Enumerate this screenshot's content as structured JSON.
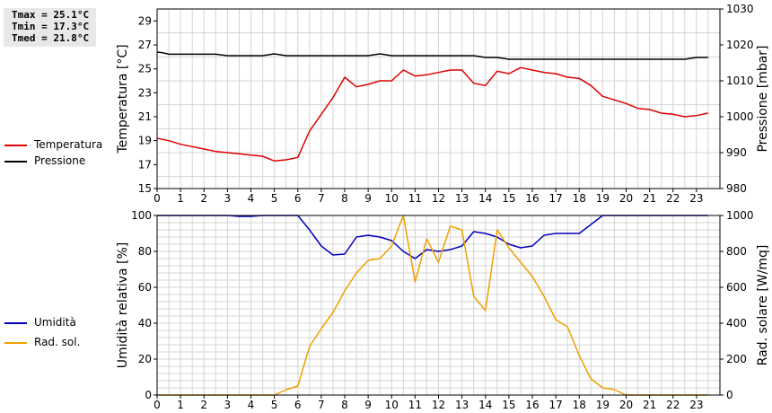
{
  "stats": {
    "tmax": "Tmax = 25.1°C",
    "tmin": "Tmin = 17.3°C",
    "tmed": "Tmed = 21.8°C"
  },
  "legend_top": [
    {
      "label": "Temperatura",
      "color": "#dd0000"
    },
    {
      "label": "Pressione",
      "color": "#000000"
    }
  ],
  "legend_bottom": [
    {
      "label": "Umidità",
      "color": "#0000bb"
    },
    {
      "label": "Rad. sol.",
      "color": "#f0a000"
    }
  ],
  "chart_data": [
    {
      "type": "line",
      "xlim": [
        0,
        24
      ],
      "x_ticks": [
        0,
        1,
        2,
        3,
        4,
        5,
        6,
        7,
        8,
        9,
        10,
        11,
        12,
        13,
        14,
        15,
        16,
        17,
        18,
        19,
        20,
        21,
        22,
        23
      ],
      "grid": true,
      "left_axis": {
        "label": "Temperatura [°C]",
        "ylim": [
          15,
          30
        ],
        "ticks": [
          15,
          17,
          19,
          21,
          23,
          25,
          27,
          29
        ]
      },
      "right_axis": {
        "label": "Pressione [mbar]",
        "ylim": [
          980,
          1030
        ],
        "ticks": [
          980,
          990,
          1000,
          1010,
          1020,
          1030
        ]
      },
      "series": [
        {
          "name": "Temperatura",
          "axis": "left",
          "color": "#dd0000",
          "x": [
            0,
            0.5,
            1,
            1.5,
            2,
            2.5,
            3,
            3.5,
            4,
            4.5,
            5,
            5.5,
            6,
            6.5,
            7,
            7.5,
            8,
            8.5,
            9,
            9.5,
            10,
            10.5,
            11,
            11.5,
            12,
            12.5,
            13,
            13.5,
            14,
            14.5,
            15,
            15.5,
            16,
            16.5,
            17,
            17.5,
            18,
            18.5,
            19,
            19.5,
            20,
            20.5,
            21,
            21.5,
            22,
            22.5,
            23,
            23.5
          ],
          "y": [
            19.2,
            19.0,
            18.7,
            18.5,
            18.3,
            18.1,
            18.0,
            17.9,
            17.8,
            17.7,
            17.3,
            17.4,
            17.6,
            19.8,
            21.2,
            22.6,
            24.3,
            23.5,
            23.7,
            24.0,
            24.0,
            24.9,
            24.4,
            24.5,
            24.7,
            24.9,
            24.9,
            23.8,
            23.6,
            24.8,
            24.6,
            25.1,
            24.9,
            24.7,
            24.6,
            24.3,
            24.2,
            23.6,
            22.7,
            22.4,
            22.1,
            21.7,
            21.6,
            21.3,
            21.2,
            21.0,
            21.1,
            21.3
          ]
        },
        {
          "name": "Pressione",
          "axis": "right",
          "color": "#000000",
          "x": [
            0,
            0.25,
            0.5,
            1,
            1.5,
            2,
            2.5,
            3,
            3.5,
            4,
            4.5,
            5,
            5.5,
            6,
            6.5,
            7,
            7.5,
            8,
            8.5,
            9,
            9.5,
            10,
            10.5,
            11,
            11.5,
            12,
            12.5,
            13,
            13.5,
            14,
            14.5,
            15,
            15.5,
            16,
            16.5,
            17,
            17.5,
            18,
            18.5,
            19,
            19.5,
            20,
            20.5,
            21,
            21.5,
            22,
            22.5,
            23,
            23.5
          ],
          "y": [
            1018,
            1017.8,
            1017.4,
            1017.4,
            1017.4,
            1017.4,
            1017.4,
            1017.0,
            1017.0,
            1017.0,
            1017.0,
            1017.5,
            1017.0,
            1017.0,
            1017.0,
            1017.0,
            1017.0,
            1017.0,
            1017.0,
            1017.0,
            1017.5,
            1017.0,
            1017.0,
            1017.0,
            1017.0,
            1017.0,
            1017.0,
            1017.0,
            1017.0,
            1016.5,
            1016.5,
            1016.0,
            1016.0,
            1016.0,
            1016.0,
            1016.0,
            1016.0,
            1016.0,
            1016.0,
            1016.0,
            1016.0,
            1016.0,
            1016.0,
            1016.0,
            1016.0,
            1016.0,
            1016.0,
            1016.5,
            1016.5
          ]
        }
      ]
    },
    {
      "type": "line",
      "xlim": [
        0,
        24
      ],
      "x_ticks": [
        0,
        1,
        2,
        3,
        4,
        5,
        6,
        7,
        8,
        9,
        10,
        11,
        12,
        13,
        14,
        15,
        16,
        17,
        18,
        19,
        20,
        21,
        22,
        23
      ],
      "grid": true,
      "left_axis": {
        "label": "Umidità relativa [%]",
        "ylim": [
          0,
          100
        ],
        "ticks": [
          0,
          20,
          40,
          60,
          80,
          100
        ]
      },
      "right_axis": {
        "label": "Rad. solare [W/mq]",
        "ylim": [
          0,
          1000
        ],
        "ticks": [
          0,
          200,
          400,
          600,
          800,
          1000
        ]
      },
      "series": [
        {
          "name": "Umidità",
          "axis": "left",
          "color": "#0000bb",
          "x": [
            0,
            0.5,
            1,
            1.5,
            2,
            2.5,
            3,
            3.5,
            4,
            4.5,
            5,
            5.5,
            6,
            6.5,
            7,
            7.5,
            8,
            8.5,
            9,
            9.5,
            10,
            10.5,
            11,
            11.5,
            12,
            12.5,
            13,
            13.5,
            14,
            14.5,
            15,
            15.5,
            16,
            16.5,
            17,
            17.5,
            18,
            18.5,
            19,
            19.5,
            20,
            20.5,
            21,
            21.5,
            22,
            22.5,
            23,
            23.5
          ],
          "y": [
            100,
            100,
            100,
            100,
            100,
            100,
            100,
            99.5,
            99.5,
            100,
            100,
            100,
            100,
            92,
            83,
            78,
            78.5,
            88,
            89,
            88,
            86,
            80,
            76,
            81,
            80,
            81,
            83,
            91,
            90,
            88,
            84,
            82,
            83,
            89,
            90,
            90,
            90,
            95,
            100,
            100,
            100,
            100,
            100,
            100,
            100,
            100,
            100,
            100
          ]
        },
        {
          "name": "Rad. sol.",
          "axis": "right",
          "color": "#f0a000",
          "x": [
            0,
            0.5,
            1,
            1.5,
            2,
            2.5,
            3,
            3.5,
            4,
            4.5,
            5,
            5.5,
            6,
            6.5,
            7,
            7.5,
            8,
            8.5,
            9,
            9.5,
            10,
            10.5,
            11,
            11.5,
            12,
            12.5,
            13,
            13.5,
            14,
            14.5,
            15,
            15.5,
            16,
            16.5,
            17,
            17.5,
            18,
            18.5,
            19,
            19.5,
            20,
            20.5,
            21,
            21.5,
            22,
            22.5,
            23,
            23.5
          ],
          "y": [
            0,
            0,
            0,
            0,
            0,
            0,
            0,
            0,
            0,
            0,
            0,
            30,
            50,
            270,
            370,
            460,
            580,
            680,
            750,
            760,
            830,
            1030,
            630,
            870,
            740,
            940,
            920,
            550,
            470,
            920,
            820,
            740,
            660,
            550,
            420,
            380,
            220,
            90,
            40,
            30,
            0,
            0,
            0,
            0,
            0,
            0,
            0,
            0
          ]
        }
      ]
    }
  ]
}
